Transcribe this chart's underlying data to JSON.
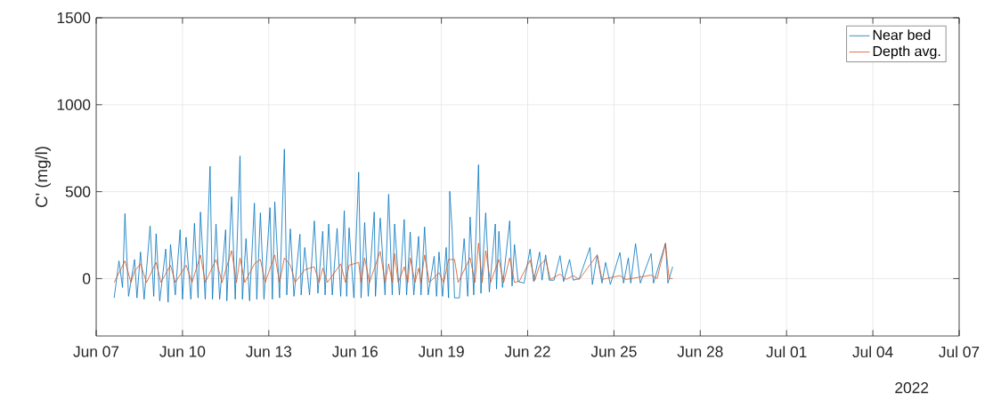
{
  "chart_data": {
    "type": "line",
    "ylabel": "C' (mg/l)",
    "xlim": [
      "2022-06-07",
      "2022-07-07"
    ],
    "ylim": [
      -330,
      1500
    ],
    "xticks": [
      {
        "value": "2022-06-07",
        "label": "Jun 07"
      },
      {
        "value": "2022-06-10",
        "label": "Jun 10"
      },
      {
        "value": "2022-06-13",
        "label": "Jun 13"
      },
      {
        "value": "2022-06-16",
        "label": "Jun 16"
      },
      {
        "value": "2022-06-19",
        "label": "Jun 19"
      },
      {
        "value": "2022-06-22",
        "label": "Jun 22"
      },
      {
        "value": "2022-06-25",
        "label": "Jun 25"
      },
      {
        "value": "2022-06-28",
        "label": "Jun 28"
      },
      {
        "value": "2022-07-01",
        "label": "Jul 01"
      },
      {
        "value": "2022-07-04",
        "label": "Jul 04"
      },
      {
        "value": "2022-07-07",
        "label": "Jul 07"
      }
    ],
    "yticks": [
      0,
      500,
      1000,
      1500
    ],
    "grid": true,
    "legend": "top right",
    "marker": "none",
    "line_style": "solid",
    "annotations": [
      "2022"
    ],
    "series": [
      {
        "name": "Near bed",
        "color": "#0072bd",
        "x": [
          "2022-06-07T15:00",
          "2022-06-07T19:00",
          "2022-06-07T22:00",
          "2022-06-08T00:00",
          "2022-06-08T03:00",
          "2022-06-08T08:00",
          "2022-06-08T10:00",
          "2022-06-08T13:00",
          "2022-06-08T16:00",
          "2022-06-08T21:00",
          "2022-06-09T00:00",
          "2022-06-09T02:00",
          "2022-06-09T05:00",
          "2022-06-09T10:00",
          "2022-06-09T12:00",
          "2022-06-09T14:00",
          "2022-06-09T18:00",
          "2022-06-09T22:00",
          "2022-06-10T00:00",
          "2022-06-10T03:00",
          "2022-06-10T07:00",
          "2022-06-10T10:00",
          "2022-06-10T13:00",
          "2022-06-10T15:00",
          "2022-06-10T19:00",
          "2022-06-10T23:00",
          "2022-06-11T01:00",
          "2022-06-11T04:00",
          "2022-06-11T07:00",
          "2022-06-11T12:00",
          "2022-06-11T13:00",
          "2022-06-11T17:00",
          "2022-06-11T20:00",
          "2022-06-12T00:00",
          "2022-06-12T02:00",
          "2022-06-12T05:00",
          "2022-06-12T08:00",
          "2022-06-12T12:00",
          "2022-06-12T14:00",
          "2022-06-12T17:00",
          "2022-06-12T20:00",
          "2022-06-13T01:00",
          "2022-06-13T03:00",
          "2022-06-13T05:00",
          "2022-06-13T09:00",
          "2022-06-13T13:00",
          "2022-06-13T15:00",
          "2022-06-13T18:00",
          "2022-06-13T21:00",
          "2022-06-14T02:00",
          "2022-06-14T03:00",
          "2022-06-14T06:00",
          "2022-06-14T10:00",
          "2022-06-14T14:00",
          "2022-06-14T17:00",
          "2022-06-14T21:00",
          "2022-06-14T23:00",
          "2022-06-15T02:00",
          "2022-06-15T05:00",
          "2022-06-15T09:00",
          "2022-06-15T12:00",
          "2022-06-15T15:00",
          "2022-06-15T17:00",
          "2022-06-15T19:00",
          "2022-06-15T23:00",
          "2022-06-16T03:00",
          "2022-06-16T05:00",
          "2022-06-16T08:00",
          "2022-06-16T11:00",
          "2022-06-16T16:00",
          "2022-06-16T17:00",
          "2022-06-16T21:00",
          "2022-06-17T01:00",
          "2022-06-17T04:00",
          "2022-06-17T07:00",
          "2022-06-17T09:00",
          "2022-06-17T13:00",
          "2022-06-17T17:00",
          "2022-06-17T19:00",
          "2022-06-17T22:00",
          "2022-06-18T01:00",
          "2022-06-18T05:00",
          "2022-06-18T07:00",
          "2022-06-18T10:00",
          "2022-06-18T13:00",
          "2022-06-18T18:00",
          "2022-06-18T20:00",
          "2022-06-18T22:00",
          "2022-06-19T01:00",
          "2022-06-19T04:00",
          "2022-06-19T06:00",
          "2022-06-19T07:00",
          "2022-06-19T09:00",
          "2022-06-19T11:00",
          "2022-06-19T15:00",
          "2022-06-19T19:00",
          "2022-06-19T22:00",
          "2022-06-20T00:00",
          "2022-06-20T03:00",
          "2022-06-20T07:00",
          "2022-06-20T09:00",
          "2022-06-20T13:00",
          "2022-06-20T16:00",
          "2022-06-20T21:00",
          "2022-06-20T22:00",
          "2022-06-21T00:00",
          "2022-06-21T03:00",
          "2022-06-21T09:00",
          "2022-06-21T11:00",
          "2022-06-21T13:00",
          "2022-06-21T16:00",
          "2022-06-21T21:00",
          "2022-06-22T02:00",
          "2022-06-22T05:00",
          "2022-06-22T10:00",
          "2022-06-22T12:00",
          "2022-06-22T15:00",
          "2022-06-22T18:00",
          "2022-06-22T22:00",
          "2022-06-23T03:00",
          "2022-06-23T06:00",
          "2022-06-23T11:00",
          "2022-06-23T14:00",
          "2022-06-23T19:00",
          "2022-06-24T04:00",
          "2022-06-24T06:00",
          "2022-06-24T10:00",
          "2022-06-24T14:00",
          "2022-06-24T17:00",
          "2022-06-24T21:00",
          "2022-06-25T05:00",
          "2022-06-25T08:00",
          "2022-06-25T12:00",
          "2022-06-25T14:00",
          "2022-06-25T18:00",
          "2022-06-25T22:00",
          "2022-06-26T07:00",
          "2022-06-26T09:00",
          "2022-06-26T19:00",
          "2022-06-26T21:00",
          "2022-06-27T01:00"
        ],
        "values": [
          -111,
          102,
          -51,
          374,
          -102,
          110,
          -111,
          153,
          -119,
          303,
          -102,
          258,
          -128,
          170,
          -136,
          196,
          -94,
          281,
          -119,
          238,
          -119,
          318,
          -111,
          383,
          -119,
          646,
          -119,
          314,
          -119,
          281,
          -128,
          471,
          -119,
          706,
          -119,
          230,
          -128,
          434,
          -119,
          378,
          -119,
          408,
          -119,
          442,
          -111,
          745,
          -94,
          286,
          -102,
          255,
          -94,
          179,
          -94,
          332,
          -85,
          272,
          -94,
          314,
          -94,
          289,
          -102,
          391,
          -102,
          292,
          -111,
          612,
          -111,
          323,
          -102,
          383,
          -102,
          348,
          -94,
          485,
          -94,
          314,
          -94,
          340,
          -94,
          268,
          -94,
          243,
          -94,
          297,
          -94,
          128,
          -102,
          153,
          -102,
          179,
          -111,
          502,
          272,
          -111,
          -111,
          230,
          -102,
          354,
          -94,
          655,
          -85,
          378,
          -77,
          314,
          -60,
          272,
          -51,
          332,
          -43,
          196,
          -17,
          -26,
          170,
          -17,
          153,
          -9,
          136,
          -9,
          -9,
          132,
          -17,
          110,
          -9,
          0,
          179,
          -34,
          136,
          -26,
          93,
          -34,
          150,
          -26,
          119,
          -26,
          201,
          -26,
          144,
          -26,
          204,
          -26,
          68
        ]
      },
      {
        "name": "Depth avg.",
        "color": "#d95319",
        "x": [
          "2022-06-07T15:00",
          "2022-06-08T00:00",
          "2022-06-08T05:00",
          "2022-06-08T08:00",
          "2022-06-08T13:00",
          "2022-06-08T18:00",
          "2022-06-09T02:00",
          "2022-06-09T06:00",
          "2022-06-09T14:00",
          "2022-06-09T18:00",
          "2022-06-10T03:00",
          "2022-06-10T08:00",
          "2022-06-10T15:00",
          "2022-06-10T19:00",
          "2022-06-11T04:00",
          "2022-06-11T09:00",
          "2022-06-11T17:00",
          "2022-06-11T21:00",
          "2022-06-12T00:00",
          "2022-06-12T04:00",
          "2022-06-12T12:00",
          "2022-06-12T17:00",
          "2022-06-12T21:00",
          "2022-06-13T05:00",
          "2022-06-13T09:00",
          "2022-06-13T13:00",
          "2022-06-13T18:00",
          "2022-06-13T22:00",
          "2022-06-14T06:00",
          "2022-06-14T14:00",
          "2022-06-14T18:00",
          "2022-06-14T21:00",
          "2022-06-15T01:00",
          "2022-06-15T12:00",
          "2022-06-15T16:00",
          "2022-06-15T19:00",
          "2022-06-16T03:00",
          "2022-06-16T05:00",
          "2022-06-16T08:00",
          "2022-06-16T12:00",
          "2022-06-16T21:00",
          "2022-06-17T01:00",
          "2022-06-17T04:00",
          "2022-06-17T07:00",
          "2022-06-17T09:00",
          "2022-06-17T12:00",
          "2022-06-17T17:00",
          "2022-06-17T20:00",
          "2022-06-17T22:00",
          "2022-06-18T02:00",
          "2022-06-18T05:00",
          "2022-06-18T07:00",
          "2022-06-18T10:00",
          "2022-06-18T14:00",
          "2022-06-18T22:00",
          "2022-06-19T02:00",
          "2022-06-19T06:00",
          "2022-06-19T11:00",
          "2022-06-19T14:00",
          "2022-06-20T00:00",
          "2022-06-20T04:00",
          "2022-06-20T07:00",
          "2022-06-20T10:00",
          "2022-06-20T13:00",
          "2022-06-20T17:00",
          "2022-06-21T00:00",
          "2022-06-21T04:00",
          "2022-06-21T09:00",
          "2022-06-21T13:00",
          "2022-06-21T17:00",
          "2022-06-22T02:00",
          "2022-06-22T06:00",
          "2022-06-22T10:00",
          "2022-06-22T15:00",
          "2022-06-22T19:00",
          "2022-06-23T03:00",
          "2022-06-23T08:00",
          "2022-06-23T14:00",
          "2022-06-23T19:00",
          "2022-06-24T10:00",
          "2022-06-24T14:00",
          "2022-06-25T05:00",
          "2022-06-25T10:00",
          "2022-06-26T07:00",
          "2022-06-26T12:00",
          "2022-06-26T19:00",
          "2022-06-26T22:00",
          "2022-06-27T01:00"
        ],
        "values": [
          -22,
          102,
          -22,
          43,
          85,
          -22,
          94,
          -22,
          77,
          -22,
          77,
          -22,
          136,
          -22,
          110,
          -22,
          161,
          -22,
          119,
          -22,
          85,
          110,
          -22,
          136,
          -22,
          119,
          77,
          -22,
          51,
          68,
          -22,
          60,
          -22,
          85,
          -22,
          77,
          93,
          -22,
          119,
          -22,
          156,
          -22,
          85,
          -22,
          144,
          -22,
          68,
          -22,
          119,
          -22,
          60,
          -22,
          136,
          -22,
          34,
          -22,
          110,
          110,
          -22,
          119,
          -22,
          204,
          -22,
          161,
          -22,
          110,
          -22,
          119,
          -22,
          -15,
          106,
          -10,
          77,
          110,
          -5,
          26,
          -5,
          17,
          -5,
          136,
          -5,
          17,
          -5,
          20,
          0,
          201,
          0,
          0
        ]
      }
    ]
  }
}
